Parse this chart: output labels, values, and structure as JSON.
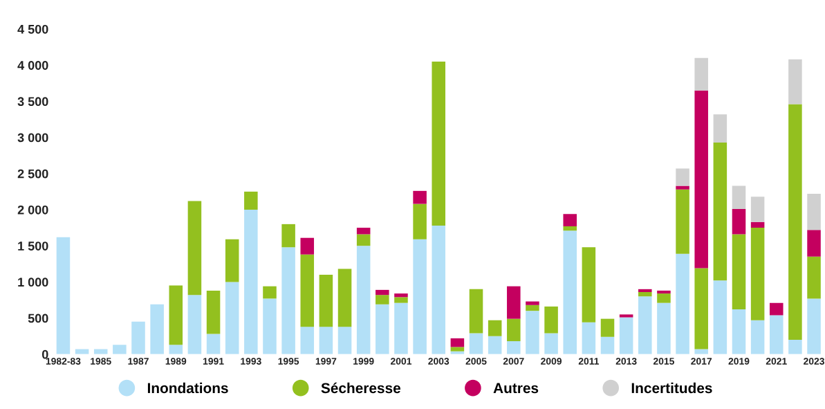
{
  "chart_data": {
    "type": "bar",
    "stacked": true,
    "categories": [
      "1982-83",
      null,
      "1985",
      null,
      "1987",
      null,
      "1989",
      null,
      "1991",
      null,
      "1993",
      null,
      "1995",
      null,
      "1997",
      null,
      "1999",
      null,
      "2001",
      null,
      "2003",
      null,
      "2005",
      null,
      "2007",
      null,
      "2009",
      null,
      "2011",
      null,
      "2013",
      null,
      "2015",
      null,
      "2017",
      null,
      "2019",
      null,
      "2021",
      null,
      "2023"
    ],
    "series": [
      {
        "name": "Inondations",
        "color": "#b3e0f7",
        "values": [
          1620,
          70,
          70,
          130,
          450,
          690,
          130,
          820,
          280,
          1000,
          2000,
          770,
          1480,
          380,
          380,
          380,
          1500,
          690,
          710,
          1590,
          1780,
          40,
          290,
          250,
          180,
          600,
          290,
          1710,
          440,
          240,
          510,
          800,
          710,
          1390,
          70,
          1020,
          620,
          470,
          540,
          200,
          770
        ]
      },
      {
        "name": "Sécheresse",
        "color": "#93c01f",
        "values": [
          null,
          null,
          null,
          null,
          null,
          null,
          820,
          1300,
          600,
          590,
          250,
          170,
          320,
          1000,
          720,
          800,
          160,
          130,
          80,
          490,
          2270,
          60,
          610,
          220,
          310,
          80,
          370,
          60,
          1040,
          250,
          null,
          60,
          130,
          890,
          1120,
          1910,
          1040,
          1280,
          null,
          3260,
          580
        ]
      },
      {
        "name": "Autres",
        "color": "#c4005f",
        "values": [
          null,
          null,
          null,
          null,
          null,
          null,
          null,
          null,
          null,
          null,
          null,
          null,
          null,
          230,
          null,
          null,
          90,
          70,
          50,
          180,
          null,
          120,
          null,
          null,
          450,
          50,
          null,
          170,
          null,
          null,
          40,
          40,
          40,
          50,
          2460,
          null,
          350,
          80,
          170,
          null,
          370
        ]
      },
      {
        "name": "Incertitudes",
        "color": "#d0d0d0",
        "values": [
          null,
          null,
          null,
          null,
          null,
          null,
          null,
          null,
          null,
          null,
          null,
          null,
          null,
          null,
          null,
          null,
          null,
          null,
          null,
          null,
          null,
          null,
          null,
          null,
          null,
          null,
          null,
          null,
          null,
          null,
          null,
          null,
          null,
          240,
          450,
          390,
          320,
          350,
          null,
          620,
          500
        ]
      }
    ],
    "ylim": [
      0,
      4500
    ],
    "yticks": [
      0,
      500,
      {
        "value": 1000,
        "label": "1 000"
      },
      {
        "value": 1500,
        "label": "1 500"
      },
      {
        "value": 2000,
        "label": "2 000"
      },
      {
        "value": 2500,
        "label": "2 500"
      },
      {
        "value": 3000,
        "label": "3 000"
      },
      {
        "value": 3500,
        "label": "3 500"
      },
      {
        "value": 4000,
        "label": "4 000"
      },
      {
        "value": 4500,
        "label": "4 500"
      }
    ],
    "grid": false,
    "legend": "bottom",
    "marker": "circle"
  }
}
